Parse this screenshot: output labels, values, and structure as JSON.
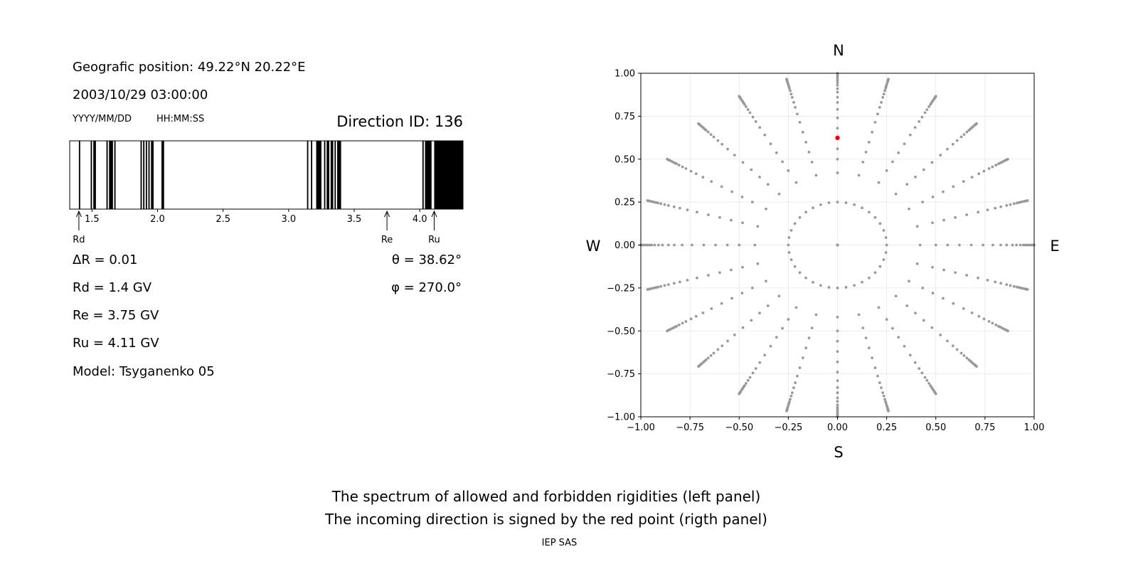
{
  "left_panel": {
    "position_line": "Geografic position: 49.22°N 20.22°E",
    "datetime_line": "2003/10/29 03:00:00",
    "date_format_label": "YYYY/MM/DD",
    "time_format_label": "HH:MM:SS",
    "direction_label": "Direction ID: 136",
    "delta_r": "ΔR = 0.01",
    "rd": "Rd = 1.4 GV",
    "re": "Re = 3.75 GV",
    "ru": "Ru = 4.11 GV",
    "model": "Model: Tsyganenko 05",
    "theta": "θ = 38.62°",
    "phi": "φ = 270.0°"
  },
  "compass": {
    "north": "N",
    "south": "S",
    "west": "W",
    "east": "E"
  },
  "caption": {
    "line1": "The spectrum of allowed and forbidden rigidities (left panel)",
    "line2": "The incoming direction is signed by the red point (rigth panel)",
    "credit": "IEP SAS"
  },
  "colors": {
    "forbidden": "#000000",
    "allowed": "#ffffff",
    "grid_points": "#999999",
    "selected_point": "#ff0000"
  },
  "chart_data": [
    {
      "type": "spectrum",
      "x_range": [
        1.33,
        4.33
      ],
      "xticks": [
        "1.5",
        "2.0",
        "2.5",
        "3.0",
        "3.5",
        "4.0"
      ],
      "xtick_values": [
        1.5,
        2.0,
        2.5,
        3.0,
        3.5,
        4.0
      ],
      "forbidden_intervals": [
        [
          1.4,
          1.41
        ],
        [
          1.49,
          1.5
        ],
        [
          1.51,
          1.53
        ],
        [
          1.61,
          1.62
        ],
        [
          1.63,
          1.66
        ],
        [
          1.67,
          1.68
        ],
        [
          1.87,
          1.88
        ],
        [
          1.89,
          1.9
        ],
        [
          1.91,
          1.92
        ],
        [
          1.93,
          1.94
        ],
        [
          1.95,
          1.97
        ],
        [
          2.03,
          2.05
        ],
        [
          3.14,
          3.15
        ],
        [
          3.17,
          3.18
        ],
        [
          3.21,
          3.25
        ],
        [
          3.27,
          3.28
        ],
        [
          3.29,
          3.31
        ],
        [
          3.32,
          3.34
        ],
        [
          3.35,
          3.36
        ],
        [
          3.37,
          3.4
        ],
        [
          4.02,
          4.03
        ],
        [
          4.04,
          4.09
        ],
        [
          4.11,
          4.33
        ]
      ],
      "markers": [
        {
          "name": "Rd",
          "value": 1.4
        },
        {
          "name": "Re",
          "value": 3.75
        },
        {
          "name": "Ru",
          "value": 4.11
        }
      ]
    },
    {
      "type": "scatter",
      "xlim": [
        -1.0,
        1.0
      ],
      "ylim": [
        -1.0,
        1.0
      ],
      "xticks": [
        "−1.00",
        "−0.75",
        "−0.50",
        "−0.25",
        "0.00",
        "0.25",
        "0.50",
        "0.75",
        "1.00"
      ],
      "yticks": [
        "1.00",
        "0.75",
        "0.50",
        "0.25",
        "0.00",
        "−0.25",
        "−0.50",
        "−0.75",
        "−1.00"
      ],
      "tick_values": [
        -1.0,
        -0.75,
        -0.5,
        -0.25,
        0.0,
        0.25,
        0.5,
        0.75,
        1.0
      ],
      "grid": true,
      "grid_pattern": {
        "azimuth_step_deg": 15,
        "inner_ring_radius": 0.25,
        "inner_ring_points": 36,
        "radial_radii": [
          0.0,
          0.42,
          0.5,
          0.56,
          0.62,
          0.68,
          0.74,
          0.79,
          0.83,
          0.86,
          0.89,
          0.91,
          0.93,
          0.945,
          0.955,
          0.965,
          0.975,
          0.985,
          0.99,
          0.995,
          1.0
        ]
      },
      "selected_point": {
        "x": 0.0,
        "y": 0.624,
        "theta_deg": 38.62,
        "phi_deg": 270.0
      }
    }
  ]
}
